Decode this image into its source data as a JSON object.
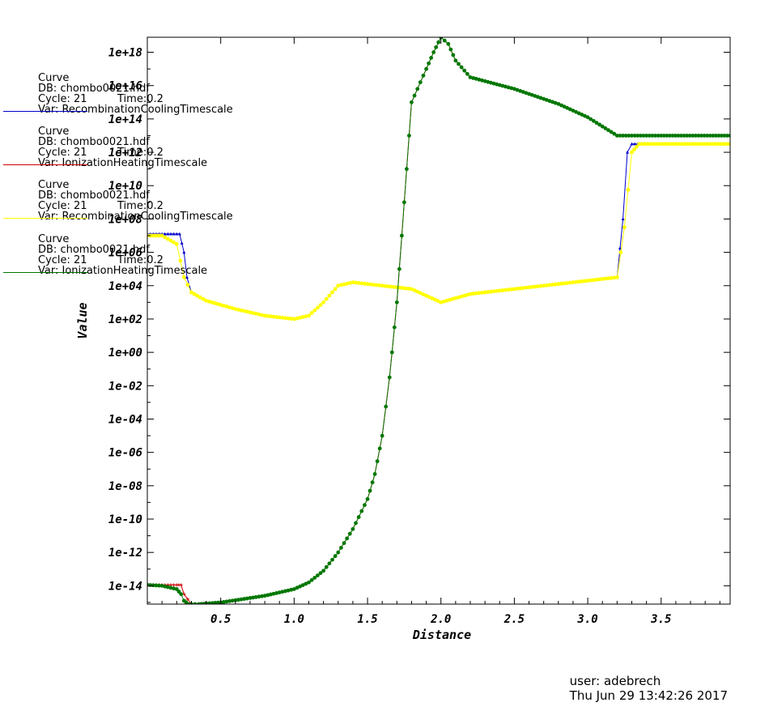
{
  "chart_data": {
    "type": "line",
    "xlabel": "Distance",
    "ylabel": "Value",
    "yscale": "log",
    "xlim": [
      0.0,
      3.97
    ],
    "ylim_exponent": [
      -15.1,
      18.9
    ],
    "x_ticks": [
      "0.5",
      "1.0",
      "1.5",
      "2.0",
      "2.5",
      "3.0",
      "3.5"
    ],
    "x_tick_values": [
      0.5,
      1.0,
      1.5,
      2.0,
      2.5,
      3.0,
      3.5
    ],
    "y_ticks": [
      "1e+18",
      "1e+16",
      "1e+14",
      "1e+12",
      "1e+10",
      "1e+08",
      "1e+06",
      "1e+04",
      "1e+02",
      "1e+00",
      "1e-02",
      "1e-04",
      "1e-06",
      "1e-08",
      "1e-10",
      "1e-12",
      "1e-14"
    ],
    "y_tick_exponents": [
      18,
      16,
      14,
      12,
      10,
      8,
      6,
      4,
      2,
      0,
      -2,
      -4,
      -6,
      -8,
      -10,
      -12,
      -14
    ],
    "grid": false,
    "legend_position": "top-left",
    "note": "series values are given as base-10 exponents of Value",
    "series": [
      {
        "name": "Var: RecombinationCoolingTimescale",
        "color": "#0000cc",
        "marker": "triangle",
        "x": [
          0.0,
          0.1,
          0.2,
          0.22,
          0.25,
          0.27,
          0.3,
          0.4,
          0.6,
          0.8,
          1.0,
          1.1,
          1.2,
          1.3,
          1.4,
          1.6,
          1.8,
          2.0,
          2.2,
          2.5,
          3.0,
          3.2,
          3.24,
          3.27,
          3.3,
          3.6,
          3.97
        ],
        "y": [
          7.1,
          7.1,
          7.1,
          7.1,
          6.0,
          4.5,
          3.6,
          3.1,
          2.6,
          2.2,
          2.0,
          2.2,
          3.0,
          4.0,
          4.2,
          4.0,
          3.8,
          3.0,
          3.5,
          3.8,
          4.3,
          4.5,
          8.0,
          12.0,
          12.5,
          12.5,
          12.5
        ]
      },
      {
        "name": "Var: IonizationHeatingTimescale",
        "color": "#cc0000",
        "marker": "plus",
        "x": [
          0.0,
          0.1,
          0.2,
          0.23,
          0.25,
          0.3,
          0.35,
          0.5,
          0.8,
          1.0,
          1.1,
          1.2,
          1.3,
          1.4,
          1.5,
          1.55,
          1.6,
          1.65,
          1.7,
          1.75,
          1.8,
          1.9,
          1.95,
          2.0,
          2.05,
          2.1,
          2.2,
          2.5,
          2.8,
          3.0,
          3.2,
          3.3,
          3.5,
          3.97
        ],
        "y": [
          -13.95,
          -13.95,
          -13.95,
          -13.95,
          -14.5,
          -15.1,
          -15.1,
          -15.0,
          -14.6,
          -14.2,
          -13.8,
          -13.1,
          -12.0,
          -10.6,
          -8.8,
          -7.3,
          -5.0,
          -1.5,
          3.0,
          9.0,
          15.0,
          17.0,
          18.0,
          18.9,
          18.5,
          17.5,
          16.5,
          15.8,
          14.9,
          14.1,
          13.0,
          13.0,
          13.0,
          13.0
        ]
      },
      {
        "name": "Var: RecombinationCoolingTimescale",
        "color": "#ffff00",
        "marker": "circle",
        "x": [
          0.0,
          0.1,
          0.2,
          0.25,
          0.3,
          0.4,
          0.6,
          0.8,
          1.0,
          1.1,
          1.2,
          1.3,
          1.4,
          1.6,
          1.8,
          2.0,
          2.2,
          2.5,
          3.0,
          3.2,
          3.25,
          3.3,
          3.35,
          3.6,
          3.97
        ],
        "y": [
          7.0,
          7.0,
          6.5,
          4.5,
          3.6,
          3.1,
          2.6,
          2.2,
          2.0,
          2.2,
          3.0,
          4.0,
          4.2,
          4.0,
          3.8,
          3.0,
          3.5,
          3.8,
          4.3,
          4.5,
          7.5,
          12.0,
          12.5,
          12.5,
          12.5
        ]
      },
      {
        "name": "Var: IonizationHeatingTimescale",
        "color": "#007700",
        "marker": "circle",
        "x": [
          0.0,
          0.1,
          0.2,
          0.23,
          0.25,
          0.28,
          0.3,
          0.35,
          0.5,
          0.8,
          1.0,
          1.1,
          1.2,
          1.3,
          1.4,
          1.5,
          1.55,
          1.6,
          1.65,
          1.7,
          1.75,
          1.8,
          1.9,
          1.95,
          2.0,
          2.05,
          2.1,
          2.2,
          2.5,
          2.8,
          3.0,
          3.2,
          3.3,
          3.5,
          3.97
        ],
        "y": [
          -13.95,
          -14.0,
          -14.2,
          -14.5,
          -14.9,
          -15.1,
          -15.1,
          -15.1,
          -15.0,
          -14.6,
          -14.2,
          -13.8,
          -13.1,
          -12.0,
          -10.6,
          -8.8,
          -7.3,
          -5.0,
          -1.5,
          3.0,
          9.0,
          15.0,
          17.0,
          18.0,
          18.9,
          18.5,
          17.5,
          16.5,
          15.8,
          14.9,
          14.1,
          13.0,
          13.0,
          13.0,
          13.0
        ]
      }
    ]
  },
  "legend": [
    {
      "title": "Curve",
      "db": "DB: chombo0021.hdf",
      "cycle": "Cycle: 21",
      "time": "Time:0.2",
      "var": "Var: RecombinationCoolingTimescale",
      "color": "#0000cc"
    },
    {
      "title": "Curve",
      "db": "DB: chombo0021.hdf",
      "cycle": "Cycle: 21",
      "time": "Time:0.2",
      "var": "Var: IonizationHeatingTimescale",
      "color": "#cc0000"
    },
    {
      "title": "Curve",
      "db": "DB: chombo0021.hdf",
      "cycle": "Cycle: 21",
      "time": "Time:0.2",
      "var": "Var: RecombinationCoolingTimescale",
      "color": "#ffff00"
    },
    {
      "title": "Curve",
      "db": "DB: chombo0021.hdf",
      "cycle": "Cycle: 21",
      "time": "Time:0.2",
      "var": "Var: IonizationHeatingTimescale",
      "color": "#007700"
    }
  ],
  "footer": {
    "user": "user: adebrech",
    "date": "Thu Jun 29 13:42:26 2017"
  }
}
